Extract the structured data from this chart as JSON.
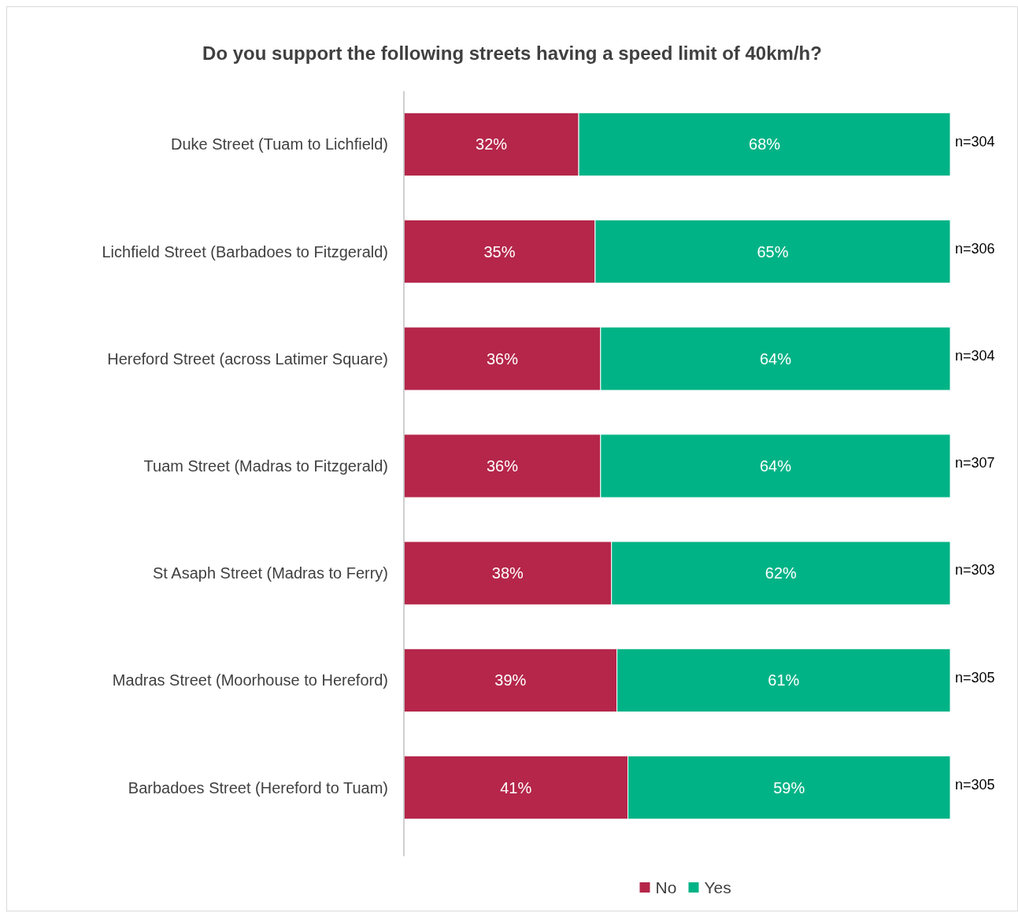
{
  "chart_data": {
    "type": "bar",
    "orientation": "horizontal",
    "stacked": true,
    "title": "Do you support the following streets having a speed limit of 40km/h?",
    "categories": [
      "Duke Street (Tuam to Lichfield)",
      "Lichfield Street (Barbadoes to Fitzgerald)",
      "Hereford Street (across Latimer Square)",
      "Tuam Street (Madras to Fitzgerald)",
      "St Asaph Street (Madras to Ferry)",
      "Madras Street (Moorhouse to Hereford)",
      "Barbadoes Street (Hereford to Tuam)"
    ],
    "series": [
      {
        "name": "No",
        "color": "#b5264a",
        "values": [
          32,
          35,
          36,
          36,
          38,
          39,
          41
        ],
        "value_labels": [
          "32%",
          "35%",
          "36%",
          "36%",
          "38%",
          "39%",
          "41%"
        ]
      },
      {
        "name": "Yes",
        "color": "#00b386",
        "values": [
          68,
          65,
          64,
          64,
          62,
          61,
          59
        ],
        "value_labels": [
          "68%",
          "65%",
          "64%",
          "64%",
          "62%",
          "61%",
          "59%"
        ]
      }
    ],
    "xlim": [
      0,
      100
    ],
    "tick_labels": "y",
    "legend": "bottom",
    "annotations": [
      "n=304",
      "n=306",
      "n=304",
      "n=307",
      "n=303",
      "n=305",
      "n=305"
    ]
  }
}
